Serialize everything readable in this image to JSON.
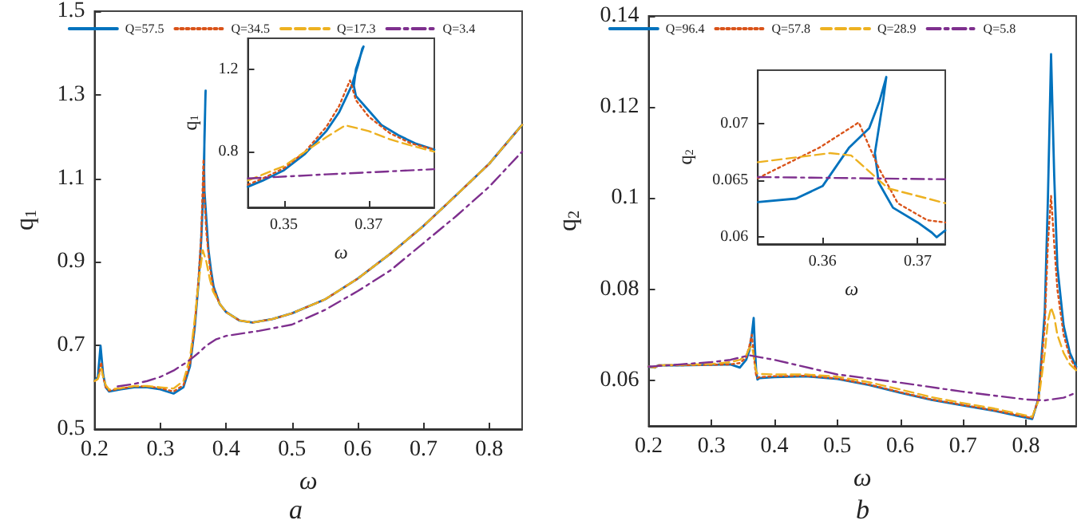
{
  "chart_data": [
    {
      "type": "line",
      "xlabel": "ω",
      "ylabel": "q$_{1}$",
      "xlim": [
        0.2,
        0.85
      ],
      "ylim": [
        0.5,
        1.5
      ],
      "xticks": [
        0.2,
        0.3,
        0.4,
        0.5,
        0.6,
        0.7,
        0.8
      ],
      "yticks": [
        0.5,
        0.7,
        0.9,
        1.1,
        1.3,
        1.5
      ],
      "legend": "top",
      "grid": false,
      "annotations": [
        "a"
      ],
      "series": [
        {
          "name": "Q=57.5",
          "color": "#0072bd",
          "line_style": "solid",
          "x": [
            0.2,
            0.205,
            0.209,
            0.213,
            0.217,
            0.222,
            0.24,
            0.26,
            0.28,
            0.3,
            0.32,
            0.335,
            0.345,
            0.352,
            0.358,
            0.362,
            0.365,
            0.3675,
            0.3685,
            0.3688,
            0.3683,
            0.367,
            0.3665,
            0.367,
            0.37,
            0.373,
            0.377,
            0.381,
            0.39,
            0.4,
            0.42,
            0.44,
            0.47,
            0.5,
            0.55,
            0.6,
            0.65,
            0.7,
            0.75,
            0.8,
            0.85
          ],
          "values": [
            0.615,
            0.625,
            0.699,
            0.63,
            0.6,
            0.59,
            0.595,
            0.6,
            0.6,
            0.595,
            0.585,
            0.6,
            0.65,
            0.74,
            0.85,
            0.95,
            1.06,
            1.22,
            1.3,
            1.31,
            1.28,
            1.2,
            1.12,
            1.07,
            1.0,
            0.93,
            0.88,
            0.84,
            0.8,
            0.78,
            0.76,
            0.755,
            0.763,
            0.777,
            0.81,
            0.86,
            0.92,
            0.986,
            1.06,
            1.135,
            1.228
          ]
        },
        {
          "name": "Q=34.5",
          "color": "#d95319",
          "line_style": "dotted",
          "x": [
            0.2,
            0.205,
            0.21,
            0.213,
            0.217,
            0.222,
            0.24,
            0.26,
            0.28,
            0.3,
            0.32,
            0.335,
            0.345,
            0.352,
            0.358,
            0.362,
            0.3656,
            0.367,
            0.37,
            0.375,
            0.38,
            0.39,
            0.4,
            0.42,
            0.44,
            0.47,
            0.5,
            0.55,
            0.6,
            0.65,
            0.7,
            0.75,
            0.8,
            0.85
          ],
          "values": [
            0.615,
            0.62,
            0.66,
            0.625,
            0.6,
            0.592,
            0.597,
            0.602,
            0.602,
            0.598,
            0.59,
            0.605,
            0.655,
            0.745,
            0.86,
            0.96,
            1.146,
            1.05,
            0.97,
            0.89,
            0.84,
            0.8,
            0.78,
            0.76,
            0.755,
            0.763,
            0.777,
            0.81,
            0.86,
            0.92,
            0.986,
            1.06,
            1.135,
            1.228
          ]
        },
        {
          "name": "Q=17.3",
          "color": "#edb120",
          "line_style": "dashed",
          "x": [
            0.2,
            0.205,
            0.21,
            0.213,
            0.217,
            0.222,
            0.24,
            0.26,
            0.28,
            0.3,
            0.32,
            0.335,
            0.345,
            0.352,
            0.358,
            0.3645,
            0.37,
            0.375,
            0.38,
            0.39,
            0.4,
            0.42,
            0.44,
            0.47,
            0.5,
            0.55,
            0.6,
            0.65,
            0.7,
            0.75,
            0.8,
            0.85
          ],
          "values": [
            0.615,
            0.62,
            0.645,
            0.625,
            0.605,
            0.595,
            0.598,
            0.603,
            0.603,
            0.6,
            0.597,
            0.615,
            0.67,
            0.76,
            0.85,
            0.928,
            0.9,
            0.86,
            0.83,
            0.8,
            0.78,
            0.76,
            0.755,
            0.763,
            0.777,
            0.81,
            0.86,
            0.92,
            0.986,
            1.06,
            1.135,
            1.228
          ]
        },
        {
          "name": "Q=3.4",
          "color": "#7e2f8e",
          "line_style": "dashdot",
          "x": [
            0.235,
            0.26,
            0.28,
            0.3,
            0.32,
            0.34,
            0.35,
            0.36,
            0.37,
            0.385,
            0.4,
            0.45,
            0.5,
            0.55,
            0.6,
            0.65,
            0.7,
            0.75,
            0.8,
            0.85
          ],
          "values": [
            0.602,
            0.608,
            0.615,
            0.625,
            0.64,
            0.66,
            0.672,
            0.685,
            0.7,
            0.715,
            0.723,
            0.735,
            0.75,
            0.785,
            0.83,
            0.88,
            0.945,
            1.01,
            1.08,
            1.164
          ]
        }
      ]
    },
    {
      "type": "line",
      "xlabel": "ω",
      "ylabel": "q$_{1}$",
      "xlim": [
        0.3415,
        0.3855
      ],
      "ylim": [
        0.53,
        1.35
      ],
      "xticks": [
        0.35,
        0.37
      ],
      "yticks": [
        0.8,
        1.2
      ],
      "grid": false,
      "series": [
        {
          "color": "#0072bd",
          "line_style": "solid",
          "x": [
            0.3415,
            0.345,
            0.35,
            0.355,
            0.36,
            0.363,
            0.366,
            0.3675,
            0.3685,
            0.3688,
            0.3683,
            0.367,
            0.3665,
            0.367,
            0.37,
            0.373,
            0.377,
            0.381,
            0.3855
          ],
          "values": [
            0.63,
            0.66,
            0.71,
            0.79,
            0.9,
            0.99,
            1.12,
            1.22,
            1.3,
            1.31,
            1.28,
            1.2,
            1.12,
            1.07,
            1.0,
            0.93,
            0.88,
            0.84,
            0.81
          ]
        },
        {
          "color": "#d95319",
          "line_style": "dotted",
          "x": [
            0.3415,
            0.345,
            0.35,
            0.355,
            0.36,
            0.363,
            0.3656,
            0.367,
            0.37,
            0.375,
            0.38,
            0.3855
          ],
          "values": [
            0.64,
            0.67,
            0.72,
            0.8,
            0.92,
            1.02,
            1.146,
            1.05,
            0.97,
            0.89,
            0.84,
            0.81
          ]
        },
        {
          "color": "#edb120",
          "line_style": "dashed",
          "x": [
            0.3415,
            0.35,
            0.355,
            0.36,
            0.3645,
            0.37,
            0.375,
            0.38,
            0.3855
          ],
          "values": [
            0.66,
            0.73,
            0.8,
            0.87,
            0.928,
            0.9,
            0.86,
            0.83,
            0.8
          ]
        },
        {
          "color": "#7e2f8e",
          "line_style": "dashdot",
          "x": [
            0.3415,
            0.36,
            0.3855
          ],
          "values": [
            0.67,
            0.69,
            0.715
          ]
        }
      ]
    },
    {
      "type": "line",
      "xlabel": "ω",
      "ylabel": "q$_{2}$",
      "xlim": [
        0.2,
        0.88
      ],
      "ylim": [
        0.05,
        0.14
      ],
      "xticks": [
        0.2,
        0.3,
        0.4,
        0.5,
        0.6,
        0.7,
        0.8
      ],
      "yticks": [
        0.06,
        0.08,
        0.1,
        0.12,
        0.14
      ],
      "legend": "top",
      "grid": false,
      "annotations": [
        "b"
      ],
      "series": [
        {
          "name": "Q=96.4",
          "color": "#0072bd",
          "line_style": "solid",
          "x": [
            0.2,
            0.21,
            0.215,
            0.25,
            0.3,
            0.33,
            0.345,
            0.355,
            0.36,
            0.364,
            0.367,
            0.369,
            0.371,
            0.373,
            0.376,
            0.4,
            0.45,
            0.5,
            0.55,
            0.6,
            0.65,
            0.7,
            0.75,
            0.8,
            0.81,
            0.82,
            0.83,
            0.835,
            0.84,
            0.845,
            0.85,
            0.86,
            0.87,
            0.88
          ],
          "values": [
            0.063,
            0.0628,
            0.0633,
            0.0633,
            0.0634,
            0.0635,
            0.0628,
            0.0645,
            0.0665,
            0.07,
            0.0737,
            0.067,
            0.062,
            0.0602,
            0.0605,
            0.0607,
            0.0609,
            0.0603,
            0.059,
            0.0573,
            0.0557,
            0.0545,
            0.0533,
            0.0518,
            0.0515,
            0.056,
            0.075,
            0.1,
            0.1316,
            0.105,
            0.085,
            0.072,
            0.066,
            0.063
          ]
        },
        {
          "name": "Q=57.8",
          "color": "#d95319",
          "line_style": "dotted",
          "x": [
            0.2,
            0.21,
            0.215,
            0.25,
            0.3,
            0.33,
            0.345,
            0.355,
            0.36,
            0.364,
            0.367,
            0.369,
            0.371,
            0.373,
            0.376,
            0.4,
            0.45,
            0.5,
            0.55,
            0.6,
            0.65,
            0.7,
            0.75,
            0.8,
            0.81,
            0.82,
            0.83,
            0.835,
            0.84,
            0.845,
            0.85,
            0.86,
            0.87,
            0.88
          ],
          "values": [
            0.063,
            0.0628,
            0.0633,
            0.0633,
            0.0634,
            0.0635,
            0.0638,
            0.065,
            0.0675,
            0.07,
            0.066,
            0.063,
            0.061,
            0.0605,
            0.0607,
            0.0609,
            0.061,
            0.0604,
            0.0591,
            0.0574,
            0.0558,
            0.0546,
            0.0534,
            0.052,
            0.0517,
            0.056,
            0.072,
            0.09,
            0.1005,
            0.09,
            0.08,
            0.07,
            0.065,
            0.0625
          ]
        },
        {
          "name": "Q=28.9",
          "color": "#edb120",
          "line_style": "dashed",
          "x": [
            0.2,
            0.21,
            0.215,
            0.25,
            0.3,
            0.33,
            0.345,
            0.355,
            0.36,
            0.364,
            0.367,
            0.369,
            0.371,
            0.373,
            0.376,
            0.4,
            0.45,
            0.5,
            0.55,
            0.6,
            0.65,
            0.7,
            0.75,
            0.8,
            0.81,
            0.82,
            0.83,
            0.835,
            0.84,
            0.845,
            0.85,
            0.86,
            0.87,
            0.88
          ],
          "values": [
            0.063,
            0.0628,
            0.0633,
            0.0634,
            0.0636,
            0.064,
            0.0645,
            0.0655,
            0.067,
            0.0675,
            0.0655,
            0.0635,
            0.062,
            0.0615,
            0.0614,
            0.0613,
            0.0613,
            0.0608,
            0.0596,
            0.058,
            0.0563,
            0.055,
            0.0538,
            0.0523,
            0.052,
            0.0555,
            0.066,
            0.073,
            0.076,
            0.074,
            0.07,
            0.066,
            0.0635,
            0.0622
          ]
        },
        {
          "name": "Q=5.8",
          "color": "#7e2f8e",
          "line_style": "dashdot",
          "x": [
            0.2,
            0.25,
            0.3,
            0.33,
            0.36,
            0.38,
            0.4,
            0.5,
            0.6,
            0.7,
            0.8,
            0.83,
            0.86,
            0.88
          ],
          "values": [
            0.063,
            0.0635,
            0.064,
            0.0645,
            0.0655,
            0.065,
            0.0645,
            0.0613,
            0.0595,
            0.0575,
            0.0558,
            0.0556,
            0.0562,
            0.0573
          ]
        }
      ]
    },
    {
      "type": "line",
      "xlabel": "ω",
      "ylabel": "q$_{2}$",
      "xlim": [
        0.3532,
        0.3729
      ],
      "ylim": [
        0.0594,
        0.0747
      ],
      "xticks": [
        0.36,
        0.37
      ],
      "yticks": [
        0.06,
        0.065,
        0.07
      ],
      "grid": false,
      "series": [
        {
          "color": "#0072bd",
          "line_style": "solid",
          "x": [
            0.3532,
            0.3572,
            0.36,
            0.3628,
            0.3649,
            0.366,
            0.3667,
            0.3664,
            0.3655,
            0.3659,
            0.3674,
            0.37,
            0.3715,
            0.372,
            0.3729
          ],
          "values": [
            0.0631,
            0.0634,
            0.0645,
            0.0679,
            0.0696,
            0.072,
            0.0741,
            0.0722,
            0.0674,
            0.0648,
            0.0626,
            0.0613,
            0.0604,
            0.06,
            0.0606
          ]
        },
        {
          "color": "#d95319",
          "line_style": "dotted",
          "x": [
            0.3532,
            0.3597,
            0.3638,
            0.3659,
            0.3679,
            0.371,
            0.3729
          ],
          "values": [
            0.0652,
            0.0679,
            0.0701,
            0.0661,
            0.063,
            0.0615,
            0.0613
          ]
        },
        {
          "color": "#edb120",
          "line_style": "dashed",
          "x": [
            0.3532,
            0.3608,
            0.363,
            0.3669,
            0.3729
          ],
          "values": [
            0.0666,
            0.0674,
            0.0672,
            0.0643,
            0.063
          ]
        },
        {
          "color": "#7e2f8e",
          "line_style": "dashdot",
          "x": [
            0.3532,
            0.363,
            0.3729
          ],
          "values": [
            0.0653,
            0.0652,
            0.0651
          ]
        }
      ]
    }
  ]
}
